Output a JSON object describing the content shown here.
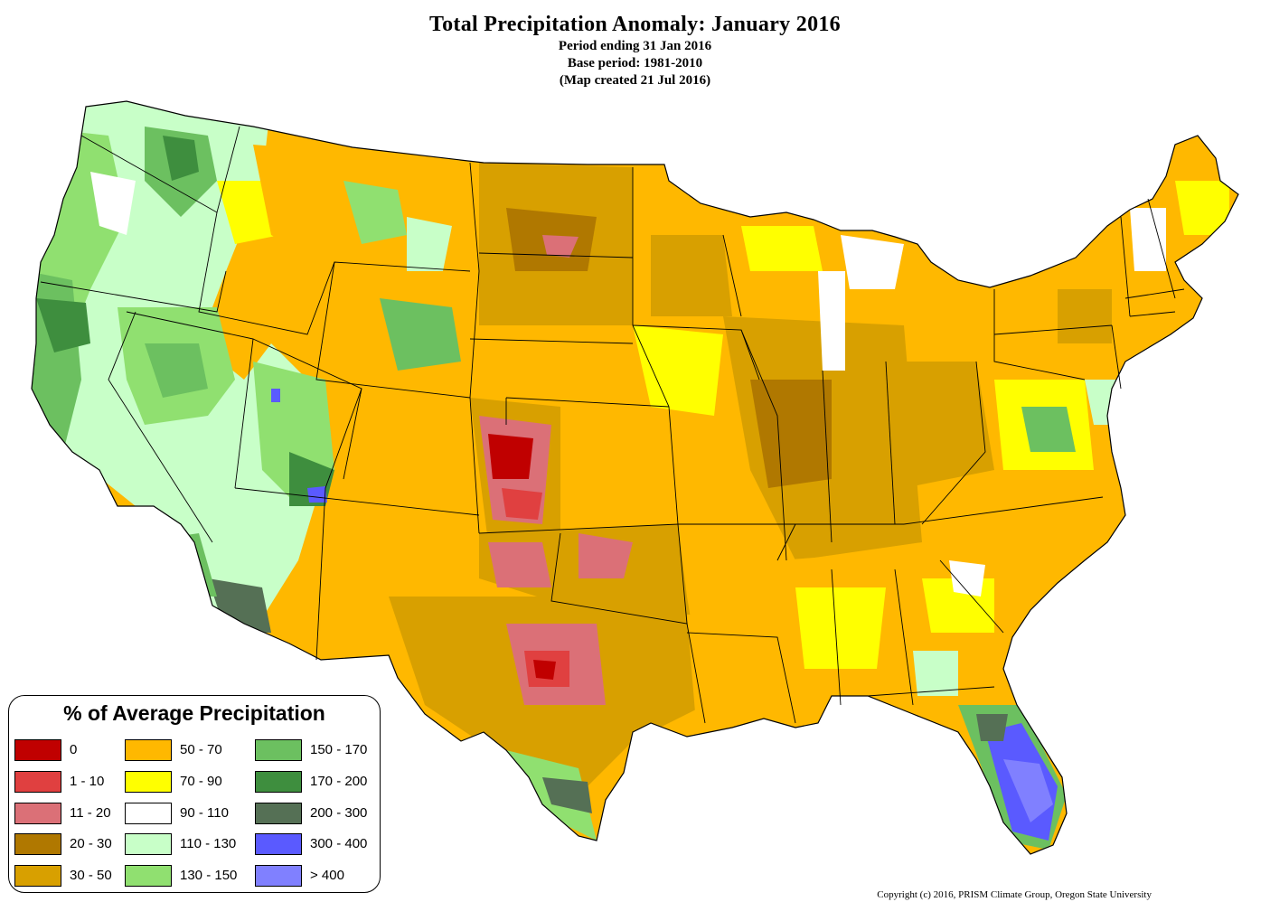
{
  "title": "Total Precipitation Anomaly: January 2016",
  "subtitles": [
    "Period ending 31 Jan 2016",
    "Base period: 1981-2010",
    "(Map created 21 Jul 2016)"
  ],
  "legend": {
    "title": "% of Average Precipitation",
    "items": [
      {
        "label": "0",
        "color": "#c00000"
      },
      {
        "label": "1 - 10",
        "color": "#e04040"
      },
      {
        "label": "11 - 20",
        "color": "#db7077"
      },
      {
        "label": "20 - 30",
        "color": "#b07800"
      },
      {
        "label": "30 - 50",
        "color": "#d8a000"
      },
      {
        "label": "50 - 70",
        "color": "#ffb800"
      },
      {
        "label": "70 - 90",
        "color": "#ffff00"
      },
      {
        "label": "90 - 110",
        "color": "#ffffff"
      },
      {
        "label": "110 - 130",
        "color": "#c8ffc8"
      },
      {
        "label": "130 - 150",
        "color": "#90e070"
      },
      {
        "label": "150 - 170",
        "color": "#6cc060"
      },
      {
        "label": "170 - 200",
        "color": "#3e8e3e"
      },
      {
        "label": "200 - 300",
        "color": "#557055"
      },
      {
        "label": "300 - 400",
        "color": "#5a5aff"
      },
      {
        "label": "> 400",
        "color": "#8080ff"
      }
    ]
  },
  "copyright": "Copyright (c) 2016, PRISM Climate Group, Oregon State University"
}
